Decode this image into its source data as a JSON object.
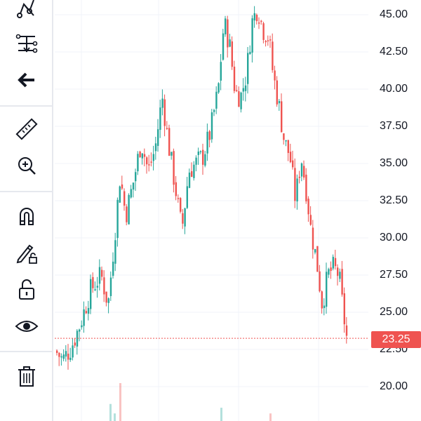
{
  "toolbar": {
    "tools": [
      {
        "name": "pattern-tool-icon"
      },
      {
        "name": "forecast-tool-icon"
      },
      {
        "name": "back-arrow-icon"
      },
      {
        "name": "ruler-icon"
      },
      {
        "name": "zoom-in-icon"
      },
      {
        "name": "magnet-icon"
      },
      {
        "name": "lock-drawing-icon"
      },
      {
        "name": "unlock-icon"
      },
      {
        "name": "eye-icon"
      },
      {
        "name": "trash-icon"
      }
    ]
  },
  "price_scale": {
    "labels": [
      "45.00",
      "42.50",
      "40.00",
      "37.50",
      "35.00",
      "32.50",
      "30.00",
      "27.50",
      "25.00",
      "22.50",
      "20.00"
    ]
  },
  "last_price": {
    "label": "23.25",
    "value": 23.25,
    "color": "#ef5350"
  },
  "colors": {
    "up": "#26a69a",
    "down": "#ef5350",
    "grid": "#f0f3fa"
  },
  "chart_data": {
    "type": "candlestick",
    "ylim": [
      18.5,
      46.5
    ],
    "trend_points": [
      [
        0,
        22.4
      ],
      [
        10,
        21.8
      ],
      [
        22,
        22.6
      ],
      [
        35,
        24.2
      ],
      [
        50,
        26.5
      ],
      [
        65,
        27.5
      ],
      [
        75,
        25.5
      ],
      [
        85,
        30.5
      ],
      [
        92,
        34.2
      ],
      [
        100,
        31.5
      ],
      [
        112,
        34.0
      ],
      [
        122,
        36.5
      ],
      [
        132,
        34.5
      ],
      [
        142,
        36.0
      ],
      [
        152,
        39.5
      ],
      [
        162,
        36.0
      ],
      [
        172,
        33.0
      ],
      [
        180,
        30.5
      ],
      [
        190,
        34.5
      ],
      [
        200,
        35.0
      ],
      [
        210,
        35.5
      ],
      [
        220,
        37.0
      ],
      [
        232,
        40.0
      ],
      [
        240,
        44.5
      ],
      [
        248,
        43.0
      ],
      [
        256,
        39.8
      ],
      [
        264,
        39.5
      ],
      [
        272,
        41.0
      ],
      [
        280,
        44.5
      ],
      [
        288,
        45.5
      ],
      [
        296,
        44.0
      ],
      [
        304,
        43.5
      ],
      [
        310,
        41.0
      ],
      [
        318,
        39.0
      ],
      [
        326,
        36.5
      ],
      [
        334,
        35.5
      ],
      [
        342,
        32.5
      ],
      [
        350,
        35.5
      ],
      [
        358,
        33.0
      ],
      [
        364,
        30.5
      ],
      [
        372,
        28.5
      ],
      [
        380,
        25.5
      ],
      [
        388,
        27.5
      ],
      [
        396,
        28.0
      ],
      [
        404,
        27.5
      ],
      [
        410,
        25.0
      ],
      [
        415,
        23.25
      ]
    ],
    "volume_bars": [
      {
        "x": 78,
        "v": 0.45,
        "dir": "up"
      },
      {
        "x": 84,
        "v": 0.2,
        "dir": "up"
      },
      {
        "x": 92,
        "v": 1.0,
        "dir": "down"
      },
      {
        "x": 236,
        "v": 0.35,
        "dir": "up"
      },
      {
        "x": 306,
        "v": 0.2,
        "dir": "down"
      }
    ]
  }
}
